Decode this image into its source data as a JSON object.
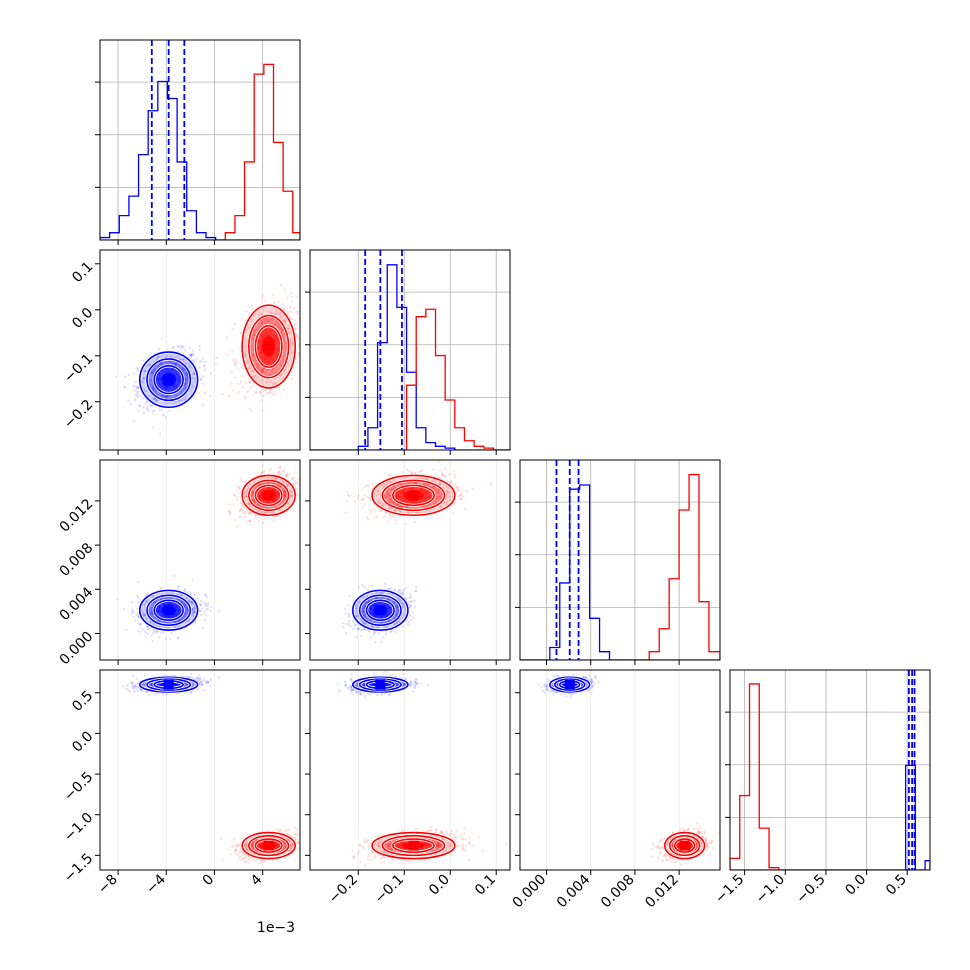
{
  "chart_data": {
    "type": "corner",
    "colors": {
      "set_a": "#0000ff",
      "set_b": "#ff0000",
      "grid": "#b0b0b0"
    },
    "grid": true,
    "parameters": [
      {
        "key": "p0",
        "range": [
          -0.0095,
          0.0071
        ],
        "ticks": [
          -0.008,
          -0.004,
          0.0,
          0.004
        ],
        "tick_labels": [
          "−8",
          "−4",
          "0",
          "4"
        ],
        "offset_label": "1e−3",
        "hist_edges": [
          -0.0095,
          -0.0087,
          -0.0079,
          -0.0071,
          -0.0063,
          -0.0055,
          -0.0047,
          -0.0039,
          -0.0031,
          -0.0023,
          -0.0015,
          -0.0007,
          0.0001,
          0.0009,
          0.0017,
          0.0025,
          0.0033,
          0.0041,
          0.0049,
          0.0057,
          0.0065,
          0.0071
        ]
      },
      {
        "key": "p1",
        "range": [
          -0.305,
          0.13
        ],
        "ticks": [
          -0.2,
          -0.1,
          0.0,
          0.1
        ],
        "tick_labels": [
          "−0.2",
          "−0.1",
          "0.0",
          "0.1"
        ],
        "offset_label": "",
        "hist_edges": [
          -0.305,
          -0.284,
          -0.263,
          -0.242,
          -0.221,
          -0.2,
          -0.179,
          -0.158,
          -0.137,
          -0.116,
          -0.095,
          -0.074,
          -0.053,
          -0.032,
          -0.011,
          0.01,
          0.031,
          0.052,
          0.073,
          0.094,
          0.115,
          0.13
        ]
      },
      {
        "key": "p2",
        "range": [
          -0.0024,
          0.0157
        ],
        "ticks": [
          0.0,
          0.004,
          0.008,
          0.012
        ],
        "tick_labels": [
          "0.000",
          "0.004",
          "0.008",
          "0.012"
        ],
        "offset_label": "",
        "hist_edges": [
          -0.0024,
          -0.0015,
          -0.0006,
          0.0003,
          0.0012,
          0.0021,
          0.003,
          0.0039,
          0.0048,
          0.0057,
          0.0066,
          0.0075,
          0.0084,
          0.0093,
          0.0102,
          0.0111,
          0.012,
          0.0129,
          0.0138,
          0.0147,
          0.0157
        ]
      },
      {
        "key": "p3",
        "range": [
          -1.68,
          0.78
        ],
        "ticks": [
          -1.5,
          -1.0,
          -0.5,
          0.0,
          0.5
        ],
        "tick_labels": [
          "−1.5",
          "−1.0",
          "−0.5",
          "0.0",
          "0.5"
        ],
        "offset_label": "",
        "hist_edges": [
          -1.68,
          -1.56,
          -1.44,
          -1.32,
          -1.2,
          -1.08,
          -0.96,
          -0.84,
          -0.72,
          -0.6,
          -0.48,
          -0.36,
          -0.24,
          -0.12,
          0.0,
          0.12,
          0.24,
          0.36,
          0.48,
          0.6,
          0.72,
          0.78
        ]
      }
    ],
    "y_axis_labels": [
      {
        "param": "p1",
        "ticks": [
          -0.2,
          -0.1,
          0.0,
          0.1
        ],
        "tick_labels": [
          "−0.2",
          "−0.1",
          "0.0",
          "0.1"
        ]
      },
      {
        "param": "p2",
        "ticks": [
          0.0,
          0.004,
          0.008,
          0.012
        ],
        "tick_labels": [
          "0.000",
          "0.004",
          "0.008",
          "0.012"
        ]
      },
      {
        "param": "p3",
        "ticks": [
          -1.5,
          -1.0,
          -0.5,
          0.0,
          0.5
        ],
        "tick_labels": [
          "−1.5",
          "−1.0",
          "−0.5",
          "0.0",
          "0.5"
        ]
      }
    ],
    "series": [
      {
        "color": "#0000ff",
        "means": [
          -0.0038,
          -0.152,
          0.0021,
          0.6
        ],
        "sds": [
          0.0012,
          0.03,
          0.0009,
          0.045
        ],
        "quantile_lines": [
          [
            -0.0052,
            -0.0038,
            -0.0025
          ],
          [
            -0.185,
            -0.152,
            -0.105
          ],
          [
            0.0009,
            0.0021,
            0.0029
          ],
          [
            0.52,
            0.56,
            0.59
          ]
        ],
        "hist_counts": [
          [
            1,
            3,
            10,
            18,
            35,
            53,
            65,
            58,
            32,
            12,
            3,
            1,
            0,
            0,
            0,
            0,
            0,
            0,
            0,
            0,
            0
          ],
          [
            0,
            0,
            0,
            0,
            0,
            2,
            12,
            58,
            100,
            77,
            42,
            12,
            4,
            2,
            1,
            0,
            0,
            0,
            0,
            0,
            0
          ],
          [
            0,
            0,
            0,
            6,
            37,
            82,
            84,
            20,
            4,
            0,
            0,
            0,
            0,
            0,
            0,
            0,
            0,
            0,
            0,
            0
          ],
          [
            0,
            0,
            0,
            0,
            0,
            0,
            0,
            0,
            0,
            0,
            0,
            0,
            0,
            0,
            0,
            0,
            0,
            0,
            45,
            0,
            4
          ]
        ]
      },
      {
        "color": "#ff0000",
        "means": [
          0.0045,
          -0.08,
          0.0125,
          -1.38
        ],
        "sds": [
          0.0011,
          0.045,
          0.0009,
          0.08
        ],
        "quantile_lines": null,
        "hist_counts": [
          [
            0,
            0,
            0,
            0,
            0,
            0,
            0,
            0,
            0,
            0,
            0,
            0,
            0,
            3,
            10,
            32,
            68,
            72,
            40,
            20,
            3
          ],
          [
            0,
            0,
            0,
            0,
            0,
            0,
            0,
            0,
            0,
            0,
            35,
            72,
            76,
            51,
            27,
            12,
            5,
            2,
            1,
            0,
            0
          ],
          [
            0,
            0,
            0,
            0,
            0,
            0,
            0,
            0,
            0,
            0,
            0,
            0,
            0,
            4,
            15,
            39,
            72,
            89,
            28,
            4
          ],
          [
            5,
            32,
            80,
            18,
            1,
            0,
            0,
            0,
            0,
            0,
            0,
            0,
            0,
            0,
            0,
            0,
            0,
            0,
            0,
            0,
            0
          ]
        ]
      }
    ],
    "hist_ymax": [
      82,
      108,
      96,
      86
    ]
  }
}
